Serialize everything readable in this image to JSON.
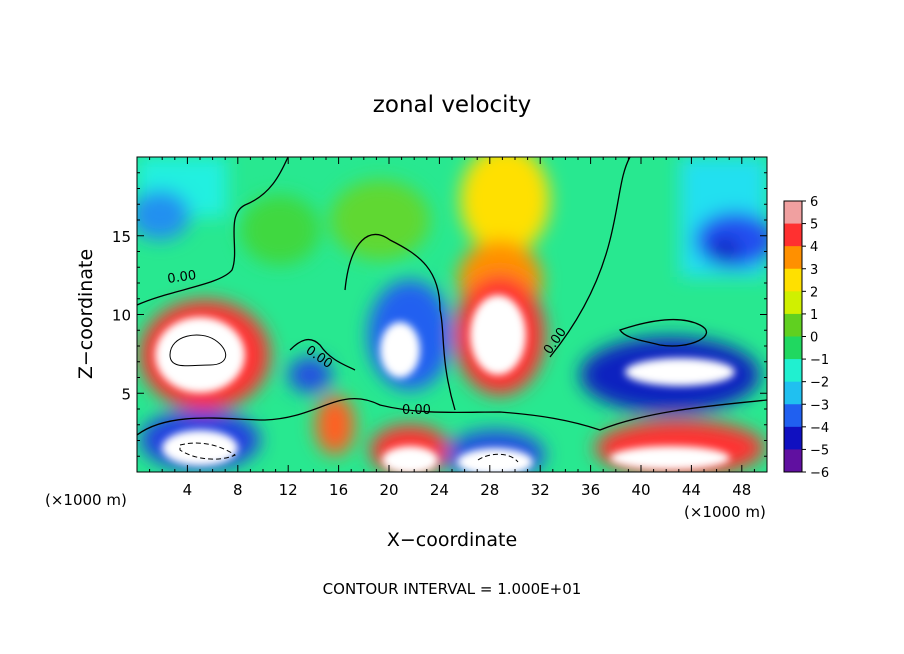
{
  "chart_data": {
    "type": "heatmap",
    "title": "zonal velocity",
    "xlabel": "X−coordinate",
    "ylabel": "Z−coordinate",
    "x_unit_left": "(×1000 m)",
    "x_unit_right": "(×1000 m)",
    "x_ticks": [
      4,
      8,
      12,
      16,
      20,
      24,
      28,
      32,
      36,
      40,
      44,
      48
    ],
    "y_ticks": [
      5,
      10,
      15
    ],
    "xlim": [
      0,
      50
    ],
    "ylim": [
      0,
      20
    ],
    "colorbar": {
      "min": -6,
      "max": 6,
      "tick_labels": [
        "6",
        "5",
        "4",
        "3",
        "2",
        "1",
        "0",
        "−1",
        "−2",
        "−3",
        "−4",
        "−5",
        "−6"
      ],
      "tick_values": [
        6,
        5,
        4,
        3,
        2,
        1,
        0,
        -1,
        -2,
        -3,
        -4,
        -5,
        -6
      ],
      "colors": [
        "#f0a0a0",
        "#ff3030",
        "#ff9000",
        "#ffe000",
        "#d0f000",
        "#60d020",
        "#20d860",
        "#20f0d0",
        "#20c0f0",
        "#2060f0",
        "#1010c0",
        "#6010a0"
      ]
    },
    "contour_labels": [
      "0.00",
      "0.00",
      "0.00",
      "0.00"
    ],
    "footer": "CONTOUR INTERVAL = 1.000E+01"
  }
}
